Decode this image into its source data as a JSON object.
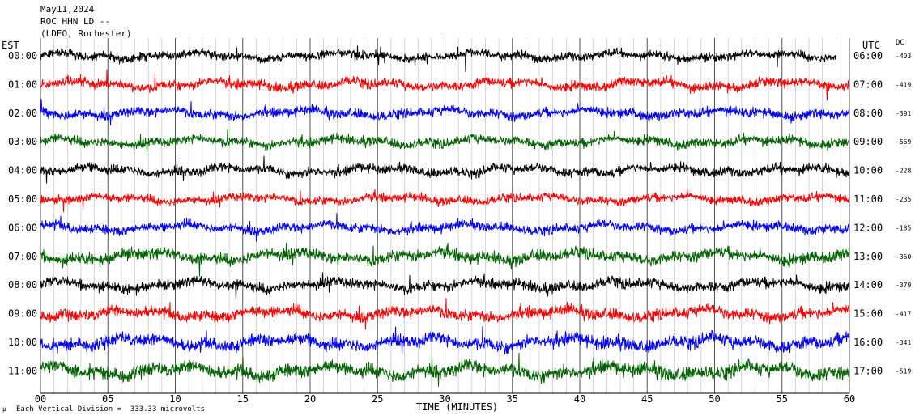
{
  "header": {
    "date": "May11,2024",
    "station": "ROC HHN LD --",
    "network": "(LDEO, Rochester)"
  },
  "left_zone_label": "EST",
  "right_zone_label": "UTC",
  "dc_label": "DC",
  "x_axis_label": "TIME (MINUTES)",
  "footnote": "Each Vertical Division =  333.33 microvolts",
  "footnote_glyph": "µ",
  "chart_data": {
    "type": "line",
    "title": "",
    "xlabel": "TIME (MINUTES)",
    "xlim": [
      0,
      60
    ],
    "x_ticks": [
      "00",
      "05",
      "10",
      "15",
      "20",
      "25",
      "30",
      "35",
      "40",
      "45",
      "50",
      "55",
      "60"
    ],
    "grid": "vertical every minute, major every 5 minutes",
    "traces": [
      {
        "est": "00:00",
        "utc": "06:00",
        "dc": "-403",
        "color": "#000000",
        "amp": 8,
        "end_minute": 59
      },
      {
        "est": "01:00",
        "utc": "07:00",
        "dc": "-419",
        "color": "#ff0000",
        "amp": 9,
        "end_minute": 60
      },
      {
        "est": "02:00",
        "utc": "08:00",
        "dc": "-391",
        "color": "#0000ff",
        "amp": 9,
        "end_minute": 60
      },
      {
        "est": "03:00",
        "utc": "09:00",
        "dc": "-569",
        "color": "#006400",
        "amp": 9,
        "end_minute": 60
      },
      {
        "est": "04:00",
        "utc": "10:00",
        "dc": "-228",
        "color": "#000000",
        "amp": 9,
        "end_minute": 60
      },
      {
        "est": "05:00",
        "utc": "11:00",
        "dc": "-235",
        "color": "#ff0000",
        "amp": 8,
        "end_minute": 60
      },
      {
        "est": "06:00",
        "utc": "12:00",
        "dc": "-185",
        "color": "#0000ff",
        "amp": 9,
        "end_minute": 60
      },
      {
        "est": "07:00",
        "utc": "13:00",
        "dc": "-360",
        "color": "#006400",
        "amp": 11,
        "end_minute": 60
      },
      {
        "est": "08:00",
        "utc": "14:00",
        "dc": "-379",
        "color": "#000000",
        "amp": 10,
        "end_minute": 60
      },
      {
        "est": "09:00",
        "utc": "15:00",
        "dc": "-417",
        "color": "#ff0000",
        "amp": 11,
        "end_minute": 60
      },
      {
        "est": "10:00",
        "utc": "16:00",
        "dc": "-341",
        "color": "#0000ff",
        "amp": 12,
        "end_minute": 60
      },
      {
        "est": "11:00",
        "utc": "17:00",
        "dc": "-519",
        "color": "#006400",
        "amp": 13,
        "end_minute": 60
      }
    ]
  }
}
